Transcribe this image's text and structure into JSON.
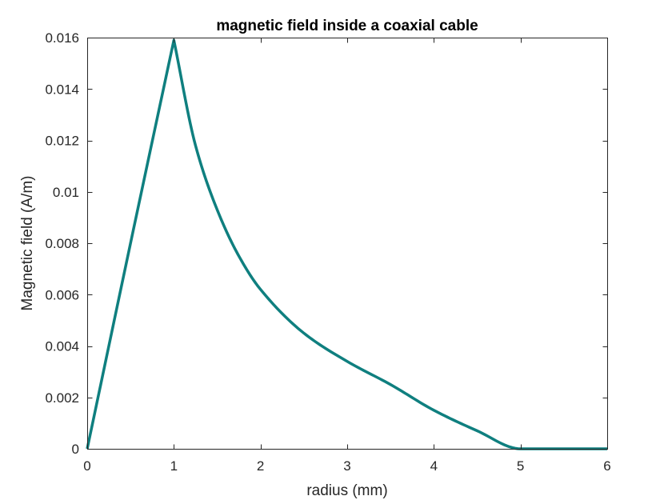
{
  "chart_data": {
    "type": "line",
    "title": "magnetic field inside a coaxial cable",
    "xlabel": "radius (mm)",
    "ylabel": "Magnetic field (A/m)",
    "xlim": [
      0,
      6
    ],
    "ylim": [
      0,
      0.016
    ],
    "xticks": [
      0,
      1,
      2,
      3,
      4,
      5,
      6
    ],
    "yticks": [
      0,
      0.002,
      0.004,
      0.006,
      0.008,
      0.01,
      0.012,
      0.014,
      0.016
    ],
    "xtick_labels": [
      "0",
      "1",
      "2",
      "3",
      "4",
      "5",
      "6"
    ],
    "ytick_labels": [
      "0",
      "0.002",
      "0.004",
      "0.006",
      "0.008",
      "0.01",
      "0.012",
      "0.014",
      "0.016"
    ],
    "grid": false,
    "legend": "none",
    "line_color": "#0f7f7f",
    "series": [
      {
        "x": [
          0,
          0.5,
          1,
          1.25,
          1.5,
          1.75,
          2,
          2.5,
          3,
          3.5,
          4,
          4.5,
          5,
          5.5,
          6
        ],
        "y": [
          0,
          0.008,
          0.0159,
          0.0118,
          0.0093,
          0.0075,
          0.0062,
          0.0045,
          0.0034,
          0.0025,
          0.0015,
          0.0007,
          0,
          0,
          0
        ]
      }
    ]
  }
}
